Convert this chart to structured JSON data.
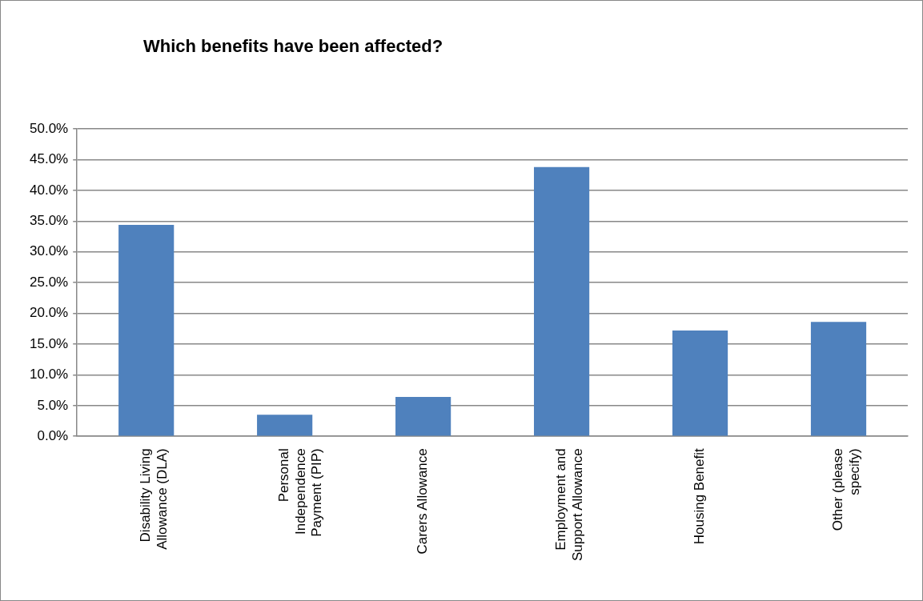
{
  "chart_data": {
    "type": "bar",
    "title": "Which benefits have been affected?",
    "categories": [
      "Disability Living Allowance (DLA)",
      "Personal Independence Payment (PIP)",
      "Carers Allowance",
      "Employment and Support Allowance",
      "Housing Benefit",
      "Other (please specify)"
    ],
    "values": [
      34.4,
      3.5,
      6.4,
      43.8,
      17.2,
      18.6
    ],
    "color": "#4f81bd",
    "ylim": [
      0,
      50
    ],
    "yticks": [
      {
        "value": 0,
        "label": "0.0%"
      },
      {
        "value": 5,
        "label": "5.0%"
      },
      {
        "value": 10,
        "label": "10.0%"
      },
      {
        "value": 15,
        "label": "15.0%"
      },
      {
        "value": 20,
        "label": "20.0%"
      },
      {
        "value": 25,
        "label": "25.0%"
      },
      {
        "value": 30,
        "label": "30.0%"
      },
      {
        "value": 35,
        "label": "35.0%"
      },
      {
        "value": 40,
        "label": "40.0%"
      },
      {
        "value": 45,
        "label": "45.0%"
      },
      {
        "value": 50,
        "label": "50.0%"
      }
    ],
    "grid": "y"
  }
}
